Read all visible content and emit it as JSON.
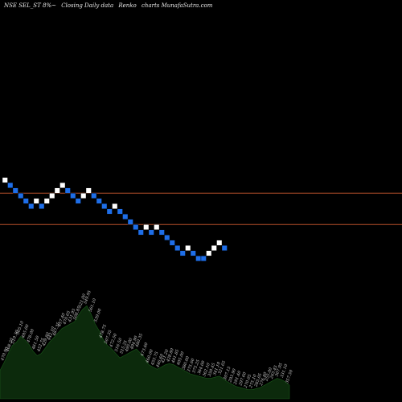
{
  "header": {
    "symbol": "NSE SEL_ST 8%~",
    "desc": "Closing Daily data",
    "chart_kind": "Renko",
    "site": "charts MunafaSutra.com"
  },
  "colors": {
    "background": "#000000",
    "brick_up": "#ffffff",
    "brick_down": "#1e6ee8",
    "line": "#b8502a",
    "volume_fill": "#0c2a0c",
    "volume_edge": "#1a5a1a"
  },
  "chart_data": {
    "type": "renko",
    "level_lines": [
      1,
      7
    ],
    "bricks": [
      {
        "dir": "up",
        "level": 10
      },
      {
        "dir": "down",
        "level": 9
      },
      {
        "dir": "down",
        "level": 8
      },
      {
        "dir": "down",
        "level": 7
      },
      {
        "dir": "down",
        "level": 6
      },
      {
        "dir": "down",
        "level": 5
      },
      {
        "dir": "up",
        "level": 6
      },
      {
        "dir": "down",
        "level": 5
      },
      {
        "dir": "up",
        "level": 6
      },
      {
        "dir": "up",
        "level": 7
      },
      {
        "dir": "up",
        "level": 8
      },
      {
        "dir": "up",
        "level": 9
      },
      {
        "dir": "down",
        "level": 8
      },
      {
        "dir": "down",
        "level": 7
      },
      {
        "dir": "down",
        "level": 6
      },
      {
        "dir": "up",
        "level": 7
      },
      {
        "dir": "up",
        "level": 8
      },
      {
        "dir": "down",
        "level": 7
      },
      {
        "dir": "down",
        "level": 6
      },
      {
        "dir": "down",
        "level": 5
      },
      {
        "dir": "down",
        "level": 4
      },
      {
        "dir": "up",
        "level": 5
      },
      {
        "dir": "down",
        "level": 4
      },
      {
        "dir": "down",
        "level": 3
      },
      {
        "dir": "down",
        "level": 2
      },
      {
        "dir": "down",
        "level": 1
      },
      {
        "dir": "down",
        "level": 0
      },
      {
        "dir": "up",
        "level": 1
      },
      {
        "dir": "down",
        "level": 0
      },
      {
        "dir": "up",
        "level": 1
      },
      {
        "dir": "down",
        "level": 0
      },
      {
        "dir": "down",
        "level": -1
      },
      {
        "dir": "down",
        "level": -2
      },
      {
        "dir": "down",
        "level": -3
      },
      {
        "dir": "down",
        "level": -4
      },
      {
        "dir": "up",
        "level": -3
      },
      {
        "dir": "down",
        "level": -4
      },
      {
        "dir": "down",
        "level": -5
      },
      {
        "dir": "down",
        "level": -5
      },
      {
        "dir": "up",
        "level": -4
      },
      {
        "dir": "up",
        "level": -3
      },
      {
        "dir": "up",
        "level": -2
      },
      {
        "dir": "down",
        "level": -3
      }
    ],
    "volume": [
      0.25,
      0.32,
      0.4,
      0.47,
      0.5,
      0.55,
      0.52,
      0.48,
      0.42,
      0.38,
      0.4,
      0.45,
      0.5,
      0.54,
      0.58,
      0.62,
      0.64,
      0.66,
      0.68,
      0.74,
      0.79,
      0.82,
      0.75,
      0.66,
      0.6,
      0.52,
      0.47,
      0.44,
      0.4,
      0.36,
      0.38,
      0.4,
      0.42,
      0.44,
      0.4,
      0.36,
      0.3,
      0.28,
      0.26,
      0.28,
      0.3,
      0.31,
      0.3,
      0.28,
      0.26,
      0.24,
      0.22,
      0.21,
      0.2,
      0.19,
      0.18,
      0.18,
      0.19,
      0.2,
      0.18,
      0.15,
      0.13,
      0.11,
      0.1,
      0.09,
      0.08,
      0.08,
      0.09,
      0.1,
      0.12,
      0.14,
      0.16,
      0.18,
      0.17,
      0.15,
      0.12
    ],
    "price_labels": [
      "470.90",
      "468.20",
      "519.30",
      "505.10",
      "495.00",
      "478.00",
      "461.50",
      "452.75",
      "429.80",
      "442.10",
      "487.35",
      "457.40",
      "470.65",
      "431.95",
      "508.85",
      "521.00",
      "549.95",
      "561.10",
      "539.00",
      "478.75",
      "507.35",
      "472.50",
      "516.50",
      "515.25",
      "495.00",
      "494.90",
      "480.35",
      "473.60",
      "460.00",
      "455.75",
      "446.60",
      "421.20",
      "428.80",
      "401.85",
      "405.00",
      "380.00",
      "375.60",
      "375.25",
      "364.00",
      "362.10",
      "350.45",
      "341.10",
      "321.65",
      "307.15",
      "293.90",
      "291.40",
      "297.60",
      "270.05",
      "275.10",
      "285.05",
      "276.40",
      "255.00",
      "265.45",
      "307.95",
      "331.10",
      "357.50"
    ]
  }
}
